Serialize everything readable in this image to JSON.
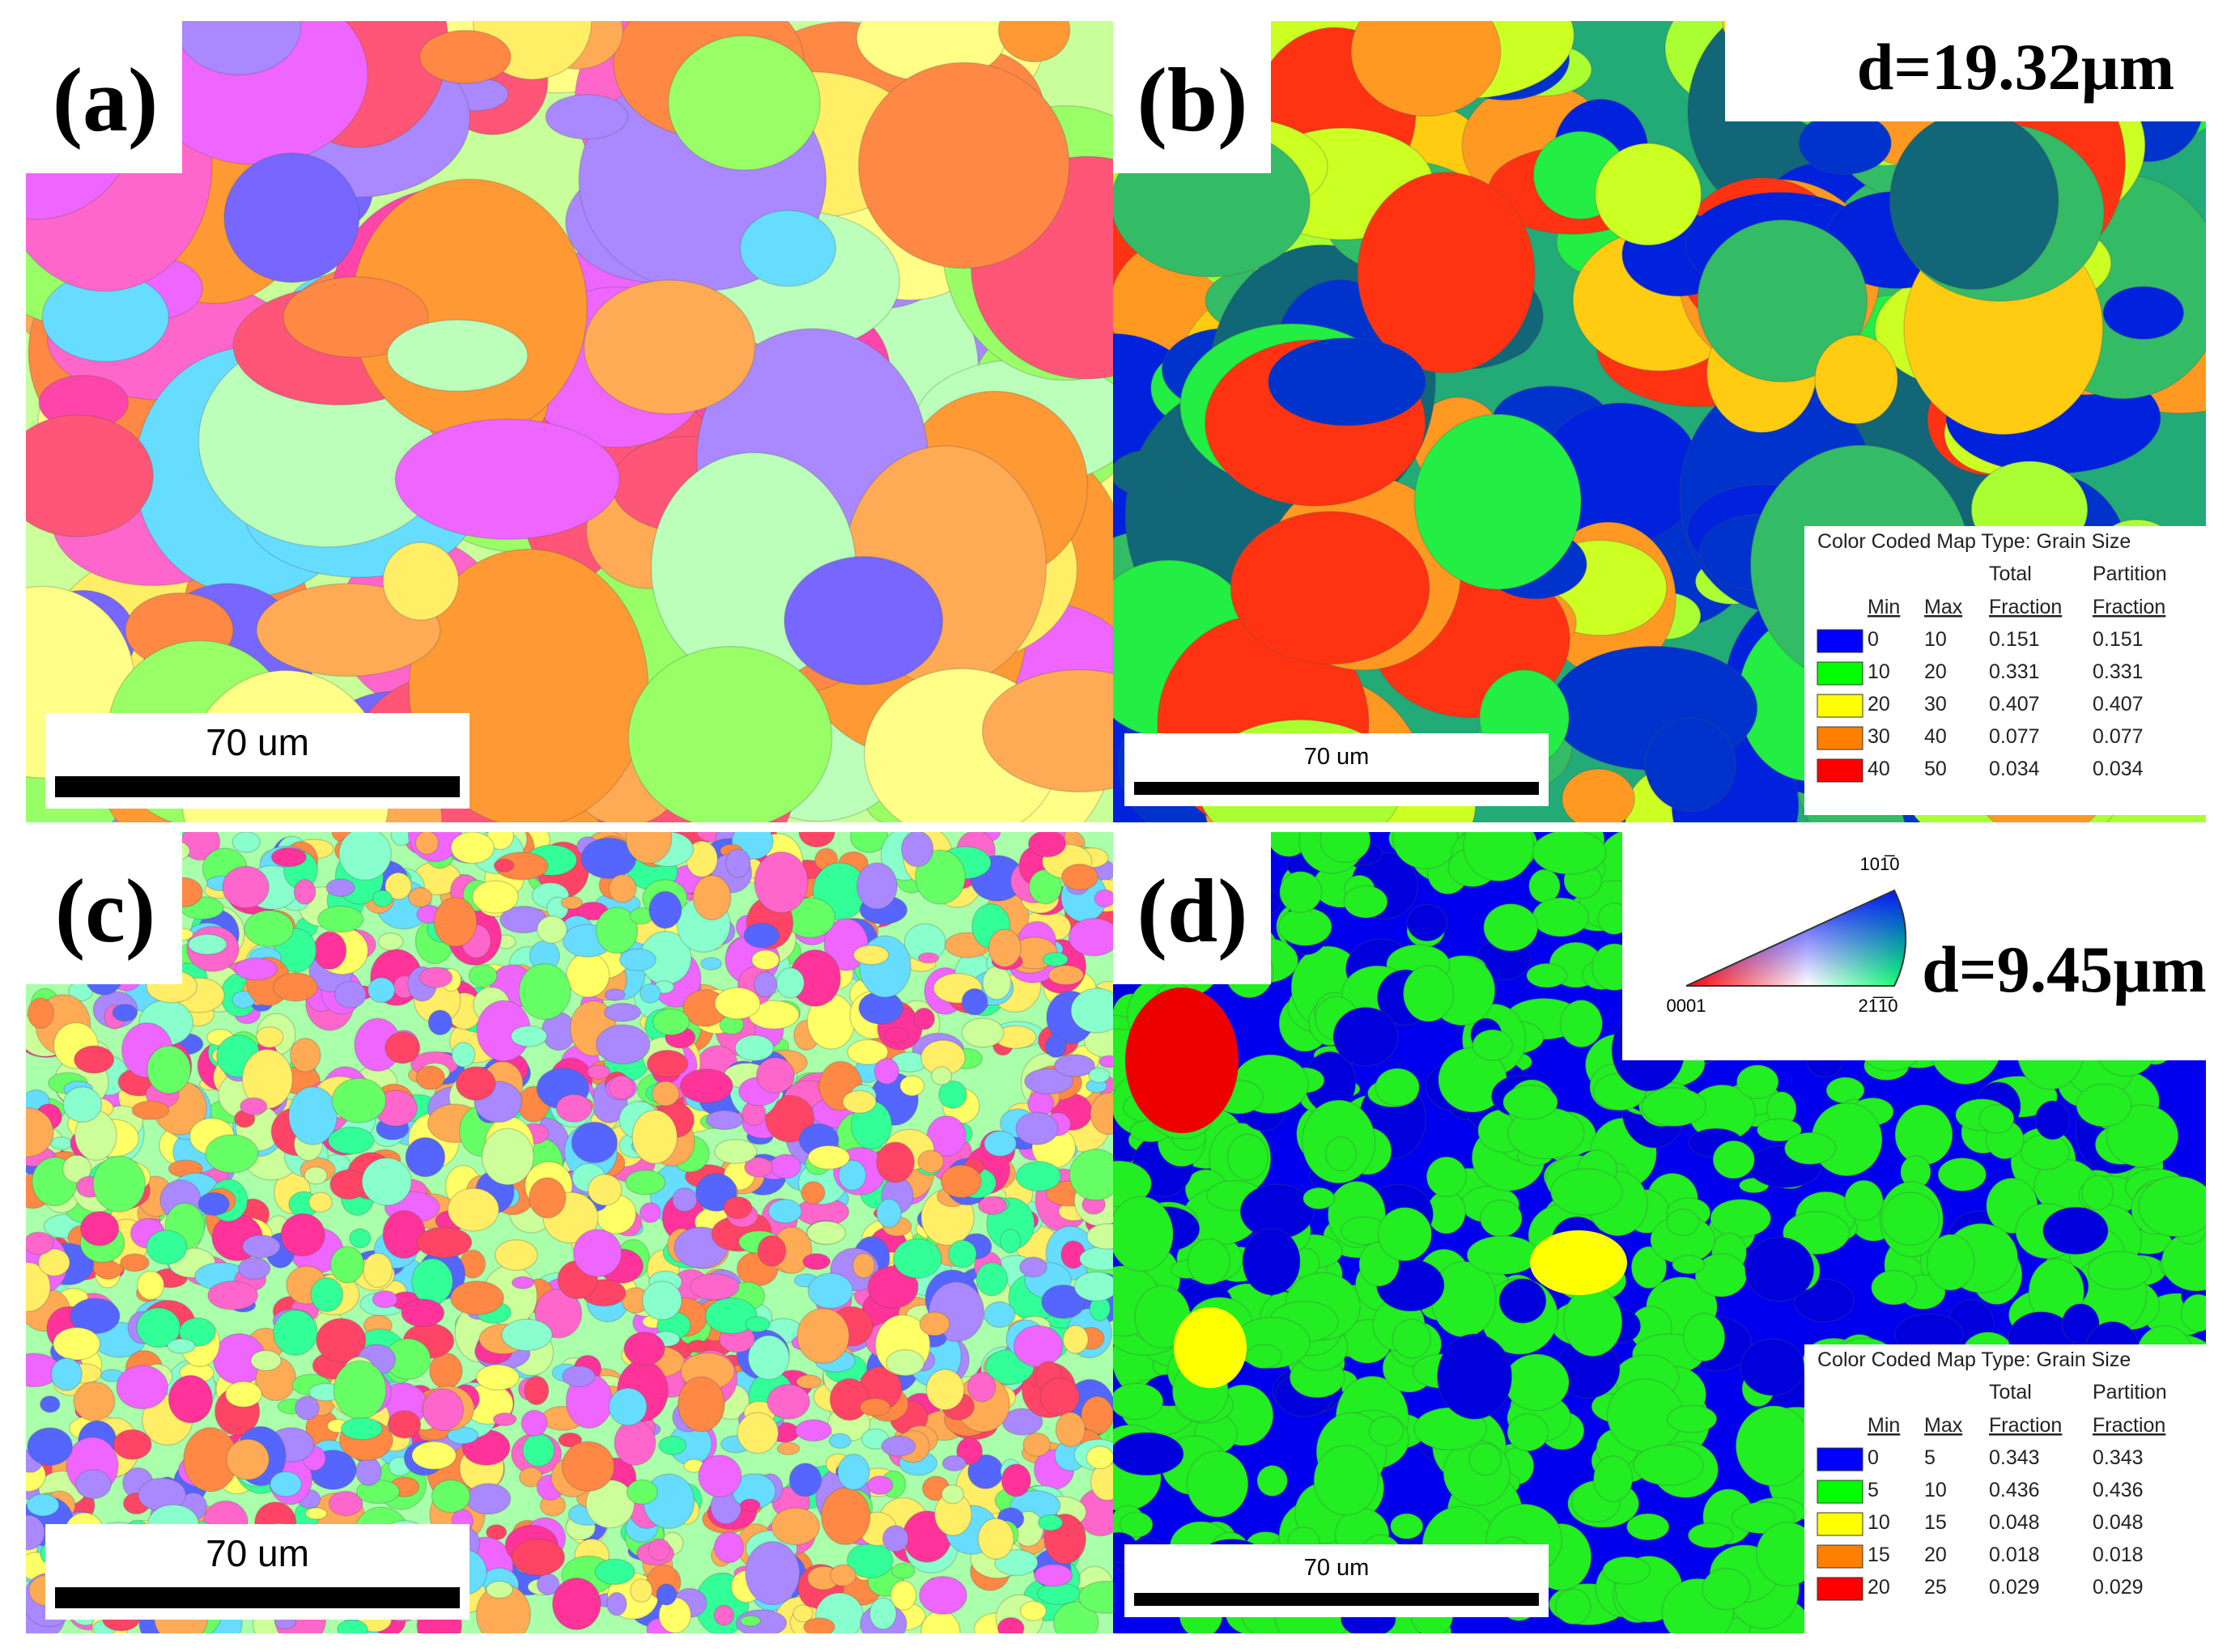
{
  "panels": [
    {
      "label": "(a)",
      "scale_bar": "70 um"
    },
    {
      "label": "(b)",
      "scale_bar": "70 um",
      "d": "d=19.32µm",
      "legend": {
        "title": "Color Coded Map Type: Grain Size",
        "headers": [
          [
            "Min"
          ],
          [
            "Max"
          ],
          [
            "Total",
            "Fraction"
          ],
          [
            "Partition",
            "Fraction"
          ]
        ],
        "rows": [
          {
            "color": "#0000ff",
            "cells": [
              0,
              10,
              0.151,
              0.151
            ]
          },
          {
            "color": "#00ff00",
            "cells": [
              10,
              20,
              0.331,
              0.331
            ]
          },
          {
            "color": "#ffff00",
            "cells": [
              20,
              30,
              0.407,
              0.407
            ]
          },
          {
            "color": "#ff8000",
            "cells": [
              30,
              40,
              0.077,
              0.077
            ]
          },
          {
            "color": "#ff0000",
            "cells": [
              40,
              50,
              0.034,
              0.034
            ]
          }
        ]
      }
    },
    {
      "label": "(c)",
      "scale_bar": "70 um"
    },
    {
      "label": "(d)",
      "scale_bar": "70 um",
      "d": "d=9.45µm",
      "ipf": {
        "top": "101̅0",
        "left": "0001",
        "right": "21̅1̅0"
      },
      "legend": {
        "title": "Color Coded Map Type: Grain Size",
        "headers": [
          [
            "Min"
          ],
          [
            "Max"
          ],
          [
            "Total",
            "Fraction"
          ],
          [
            "Partition",
            "Fraction"
          ]
        ],
        "rows": [
          {
            "color": "#0000ff",
            "cells": [
              0,
              5,
              0.343,
              0.343
            ]
          },
          {
            "color": "#00ff00",
            "cells": [
              5,
              10,
              0.436,
              0.436
            ]
          },
          {
            "color": "#ffff00",
            "cells": [
              10,
              15,
              0.048,
              0.048
            ]
          },
          {
            "color": "#ff8000",
            "cells": [
              15,
              20,
              0.018,
              0.018
            ]
          },
          {
            "color": "#ff0000",
            "cells": [
              20,
              25,
              0.029,
              0.029
            ]
          }
        ]
      }
    }
  ]
}
